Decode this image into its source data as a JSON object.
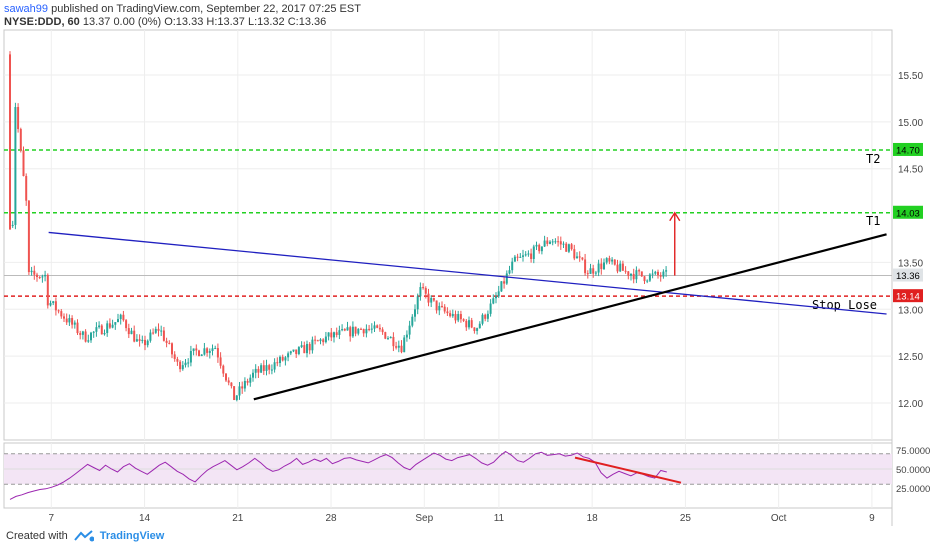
{
  "header": {
    "author": "sawah99",
    "published": "published on TradingView.com, September 22, 2017 07:25 EST",
    "symbol": "NYSE:DDD, 60",
    "ohlc": "13.37 0.00 (0%) O:13.33 H:13.37 L:13.32 C:13.36"
  },
  "footer": {
    "created_with": "Created with",
    "brand": "TradingView"
  },
  "colors": {
    "candle_up": "#26a69a",
    "candle_down": "#ef5350",
    "target_line": "#22d022",
    "stop_line": "#e02020",
    "blue_trend": "#2020c0",
    "black_trend": "#000000",
    "rsi_line": "#9c27b0",
    "rsi_band": "#f3e5f5"
  },
  "chart_data": [
    {
      "type": "candlestick",
      "y_axis_ticks": [
        "15.50",
        "15.00",
        "14.50",
        "13.50",
        "13.00",
        "12.50",
        "12.00"
      ],
      "ylim": [
        11.85,
        15.85
      ],
      "x_axis_ticks": [
        "7",
        "14",
        "21",
        "28",
        "Sep",
        "11",
        "18",
        "25",
        "Oct",
        "9"
      ],
      "horizontal_lines": [
        {
          "value": 14.7,
          "label": "14.70",
          "name": "T2",
          "color": "green"
        },
        {
          "value": 14.03,
          "label": "14.03",
          "name": "T1",
          "color": "green"
        },
        {
          "value": 13.14,
          "label": "13.14",
          "name": "Stop Lose",
          "color": "red"
        }
      ],
      "last_price_label": "13.36",
      "close_path": [
        [
          "Aug 3",
          15.7
        ],
        [
          "Aug 4",
          13.9
        ],
        [
          "Aug 5",
          13.5
        ],
        [
          "Aug 7",
          13.1
        ],
        [
          "Aug 8",
          12.9
        ],
        [
          "Aug 9",
          12.7
        ],
        [
          "Aug 10",
          12.8
        ],
        [
          "Aug 11",
          12.9
        ],
        [
          "Aug 14",
          12.6
        ],
        [
          "Aug 15",
          12.8
        ],
        [
          "Aug 16",
          12.4
        ],
        [
          "Aug 17",
          12.55
        ],
        [
          "Aug 18",
          12.6
        ],
        [
          "Aug 21",
          12.05
        ],
        [
          "Aug 22",
          12.3
        ],
        [
          "Aug 23",
          12.4
        ],
        [
          "Aug 24",
          12.5
        ],
        [
          "Aug 25",
          12.6
        ],
        [
          "Aug 28",
          12.7
        ],
        [
          "Aug 29",
          12.75
        ],
        [
          "Aug 30",
          12.8
        ],
        [
          "Aug 31",
          12.75
        ],
        [
          "Sep 1",
          12.6
        ],
        [
          "Sep 5",
          13.2
        ],
        [
          "Sep 6",
          13.0
        ],
        [
          "Sep 7",
          12.9
        ],
        [
          "Sep 8",
          12.8
        ],
        [
          "Sep 11",
          13.1
        ],
        [
          "Sep 12",
          13.5
        ],
        [
          "Sep 13",
          13.6
        ],
        [
          "Sep 14",
          13.75
        ],
        [
          "Sep 15",
          13.65
        ],
        [
          "Sep 18",
          13.4
        ],
        [
          "Sep 19",
          13.5
        ],
        [
          "Sep 20",
          13.4
        ],
        [
          "Sep 21",
          13.35
        ],
        [
          "Sep 22",
          13.36
        ]
      ],
      "annotations": [
        {
          "type": "trendline",
          "color": "blue",
          "from": [
            "Aug 4",
            13.82
          ],
          "to": [
            "Oct 10",
            12.95
          ]
        },
        {
          "type": "trendline",
          "color": "black",
          "from": [
            "Aug 21",
            12.04
          ],
          "to": [
            "Oct 10",
            13.8
          ]
        },
        {
          "type": "arrow",
          "color": "red",
          "from": [
            "Sep 22",
            13.36
          ],
          "to": [
            "Sep 22",
            14.03
          ]
        }
      ]
    },
    {
      "type": "line",
      "name": "RSI",
      "y_axis_ticks": [
        "75.0000",
        "50.0000",
        "25.0000"
      ],
      "ylim": [
        5,
        85
      ],
      "band": [
        30,
        70
      ],
      "values": [
        10,
        14,
        16,
        19,
        21,
        23,
        24,
        26,
        29,
        33,
        38,
        44,
        50,
        56,
        52,
        48,
        55,
        50,
        46,
        53,
        57,
        51,
        47,
        43,
        49,
        55,
        59,
        53,
        47,
        43,
        37,
        33,
        41,
        48,
        53,
        57,
        61,
        55,
        49,
        53,
        58,
        64,
        58,
        51,
        47,
        49,
        54,
        58,
        64,
        56,
        59,
        63,
        60,
        64,
        57,
        60,
        64,
        65,
        62,
        60,
        58,
        62,
        66,
        69,
        65,
        58,
        52,
        49,
        56,
        61,
        66,
        71,
        68,
        63,
        61,
        65,
        67,
        69,
        64,
        58,
        55,
        59,
        67,
        73,
        68,
        61,
        59,
        64,
        70,
        72,
        68,
        69,
        70,
        67,
        68,
        71,
        66,
        64,
        59,
        45,
        38,
        43,
        47,
        44,
        41,
        45,
        43,
        40,
        38,
        48,
        46
      ],
      "annotations": [
        {
          "type": "trendline",
          "color": "red",
          "from_value": 65,
          "to_value": 32
        }
      ]
    }
  ]
}
